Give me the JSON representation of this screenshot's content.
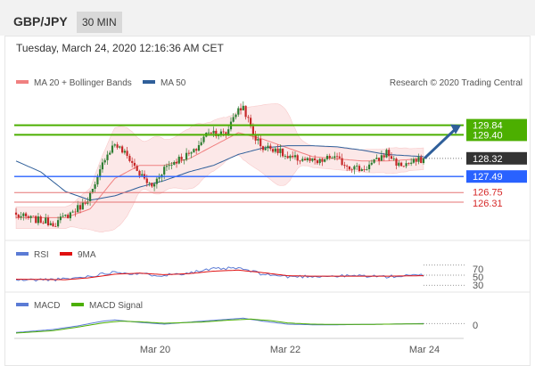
{
  "header": {
    "symbol": "GBP/JPY",
    "timeframe": "30 MIN"
  },
  "date_line": "Tuesday, March 24, 2020 12:16:36 AM CET",
  "colors": {
    "ma20": "#f08080",
    "ma50": "#2f5f9a",
    "bull": "#2e7d32",
    "bear": "#c62828",
    "resistance": "#4caf00",
    "pivot": "#2962ff",
    "support": "#e57373",
    "current": "#333333",
    "rsi": "#5b7bd5",
    "rsi9ma": "#e01010",
    "macd": "#5b7bd5",
    "macd_signal": "#4caf00"
  },
  "chart_data": [
    {
      "type": "candlestick",
      "legend": [
        "MA 20 + Bollinger Bands",
        "MA 50"
      ],
      "credit": "Research © 2020 Trading Central",
      "x_ticks": [
        "Mar 20",
        "Mar 22",
        "Mar 24"
      ],
      "ylim": [
        124.8,
        131.5
      ],
      "levels": [
        {
          "name": "resistance2",
          "value": 129.84,
          "label": "129.84"
        },
        {
          "name": "resistance1",
          "value": 129.4,
          "label": "129.40"
        },
        {
          "name": "current",
          "value": 128.32,
          "label": "128.32"
        },
        {
          "name": "pivot",
          "value": 127.49,
          "label": "127.49"
        },
        {
          "name": "support1",
          "value": 126.75,
          "label": "126.75"
        },
        {
          "name": "support2",
          "value": 126.31,
          "label": "126.31"
        }
      ],
      "close_anchors": [
        [
          0,
          125.7
        ],
        [
          8,
          125.5
        ],
        [
          16,
          125.35
        ],
        [
          22,
          125.8
        ],
        [
          27,
          126.2
        ],
        [
          32,
          127.0
        ],
        [
          36,
          128.4
        ],
        [
          40,
          129.0
        ],
        [
          46,
          128.3
        ],
        [
          50,
          127.6
        ],
        [
          55,
          127.0
        ],
        [
          60,
          127.9
        ],
        [
          66,
          128.3
        ],
        [
          72,
          128.6
        ],
        [
          78,
          129.6
        ],
        [
          85,
          129.4
        ],
        [
          88,
          130.3
        ],
        [
          92,
          130.7
        ],
        [
          96,
          129.4
        ],
        [
          100,
          128.8
        ],
        [
          105,
          128.8
        ],
        [
          110,
          128.3
        ],
        [
          116,
          128.3
        ],
        [
          122,
          128.1
        ],
        [
          128,
          128.4
        ],
        [
          134,
          128.0
        ],
        [
          140,
          127.8
        ],
        [
          146,
          128.2
        ],
        [
          150,
          128.6
        ],
        [
          155,
          128.0
        ],
        [
          160,
          128.1
        ],
        [
          165,
          128.3
        ]
      ],
      "series": [
        {
          "name": "MA 20",
          "values_anchor": [
            [
              0,
              125.6
            ],
            [
              20,
              125.6
            ],
            [
              30,
              126.0
            ],
            [
              40,
              127.4
            ],
            [
              50,
              128.0
            ],
            [
              60,
              128.0
            ],
            [
              70,
              128.3
            ],
            [
              80,
              128.9
            ],
            [
              90,
              129.5
            ],
            [
              100,
              129.2
            ],
            [
              110,
              128.8
            ],
            [
              120,
              128.4
            ],
            [
              130,
              128.3
            ],
            [
              140,
              128.2
            ],
            [
              150,
              128.2
            ],
            [
              165,
              128.3
            ]
          ]
        },
        {
          "name": "MA 50",
          "values_anchor": [
            [
              0,
              128.2
            ],
            [
              10,
              127.7
            ],
            [
              20,
              126.8
            ],
            [
              30,
              126.4
            ],
            [
              40,
              126.6
            ],
            [
              50,
              127.0
            ],
            [
              60,
              127.3
            ],
            [
              70,
              127.7
            ],
            [
              80,
              128.0
            ],
            [
              90,
              128.5
            ],
            [
              100,
              128.8
            ],
            [
              110,
              128.9
            ],
            [
              120,
              128.9
            ],
            [
              130,
              128.85
            ],
            [
              140,
              128.7
            ],
            [
              150,
              128.5
            ],
            [
              165,
              128.4
            ]
          ]
        }
      ]
    },
    {
      "type": "line",
      "legend": [
        "RSI",
        "9MA"
      ],
      "y_ticks": [
        "70",
        "50",
        "30"
      ],
      "ylim": [
        20,
        80
      ],
      "series": [
        {
          "name": "RSI",
          "values_anchor": [
            [
              0,
              40
            ],
            [
              20,
              42
            ],
            [
              30,
              48
            ],
            [
              40,
              57
            ],
            [
              50,
              52
            ],
            [
              60,
              50
            ],
            [
              70,
              55
            ],
            [
              80,
              62
            ],
            [
              90,
              64
            ],
            [
              100,
              52
            ],
            [
              110,
              47
            ],
            [
              120,
              48
            ],
            [
              130,
              48
            ],
            [
              140,
              49
            ],
            [
              150,
              47
            ],
            [
              165,
              50
            ]
          ]
        },
        {
          "name": "9MA",
          "values_anchor": [
            [
              0,
              42
            ],
            [
              20,
              41
            ],
            [
              30,
              45
            ],
            [
              40,
              52
            ],
            [
              50,
              54
            ],
            [
              60,
              51
            ],
            [
              70,
              53
            ],
            [
              80,
              58
            ],
            [
              90,
              60
            ],
            [
              100,
              55
            ],
            [
              110,
              49
            ],
            [
              120,
              48
            ],
            [
              130,
              48
            ],
            [
              140,
              48
            ],
            [
              150,
              48
            ],
            [
              165,
              49
            ]
          ]
        }
      ]
    },
    {
      "type": "line",
      "legend": [
        "MACD",
        "MACD Signal"
      ],
      "y_ticks": [
        "0"
      ],
      "ylim": [
        -2.2,
        2.0
      ],
      "series": [
        {
          "name": "MACD",
          "values_anchor": [
            [
              0,
              -1.5
            ],
            [
              15,
              -1.0
            ],
            [
              25,
              -0.4
            ],
            [
              35,
              0.4
            ],
            [
              40,
              0.6
            ],
            [
              50,
              0.2
            ],
            [
              60,
              -0.1
            ],
            [
              75,
              0.4
            ],
            [
              85,
              0.7
            ],
            [
              92,
              0.9
            ],
            [
              100,
              0.4
            ],
            [
              110,
              -0.1
            ],
            [
              120,
              -0.2
            ],
            [
              130,
              -0.2
            ],
            [
              140,
              -0.15
            ],
            [
              150,
              -0.1
            ],
            [
              165,
              0.0
            ]
          ]
        },
        {
          "name": "MACD Signal",
          "values_anchor": [
            [
              0,
              -1.6
            ],
            [
              15,
              -1.2
            ],
            [
              25,
              -0.6
            ],
            [
              35,
              0.1
            ],
            [
              42,
              0.4
            ],
            [
              50,
              0.3
            ],
            [
              60,
              0.05
            ],
            [
              75,
              0.25
            ],
            [
              85,
              0.55
            ],
            [
              95,
              0.75
            ],
            [
              103,
              0.5
            ],
            [
              110,
              0.1
            ],
            [
              120,
              -0.1
            ],
            [
              130,
              -0.15
            ],
            [
              140,
              -0.15
            ],
            [
              150,
              -0.1
            ],
            [
              165,
              -0.05
            ]
          ]
        }
      ]
    }
  ]
}
